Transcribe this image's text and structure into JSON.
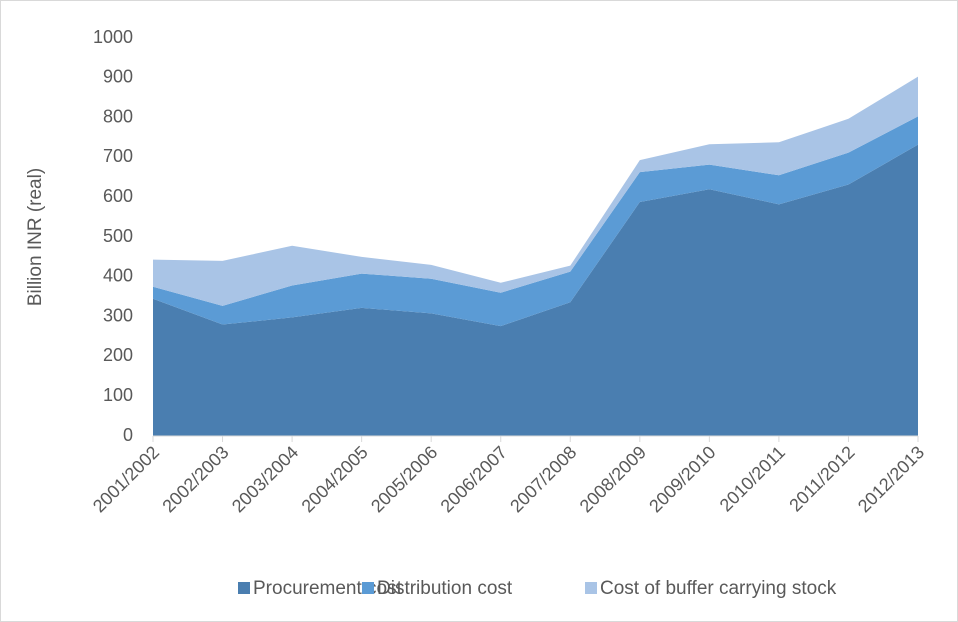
{
  "chart_data": {
    "type": "stacked_area",
    "y_label": "Billion INR (real)",
    "categories": [
      "2001/2002",
      "2002/2003",
      "2003/2004",
      "2004/2005",
      "2005/2006",
      "2006/2007",
      "2007/2008",
      "2008/2009",
      "2009/2010",
      "2010/2011",
      "2011/2012",
      "2012/2013"
    ],
    "series": [
      {
        "name": "Procurement cost",
        "color": "#4a7eb0",
        "values": [
          345,
          280,
          298,
          322,
          308,
          276,
          336,
          588,
          620,
          582,
          632,
          732
        ]
      },
      {
        "name": "Distribution cost",
        "color": "#5b9bd5",
        "values": [
          30,
          47,
          80,
          86,
          87,
          84,
          77,
          75,
          62,
          73,
          80,
          71
        ]
      },
      {
        "name": "Cost of buffer carrying stock",
        "color": "#a9c4e6",
        "values": [
          68,
          113,
          100,
          42,
          35,
          25,
          15,
          30,
          51,
          83,
          85,
          100
        ]
      }
    ],
    "ylim": [
      0,
      1000
    ],
    "yticks": [
      0,
      100,
      200,
      300,
      400,
      500,
      600,
      700,
      800,
      900,
      1000
    ],
    "grid": false,
    "legend": "bottom"
  }
}
